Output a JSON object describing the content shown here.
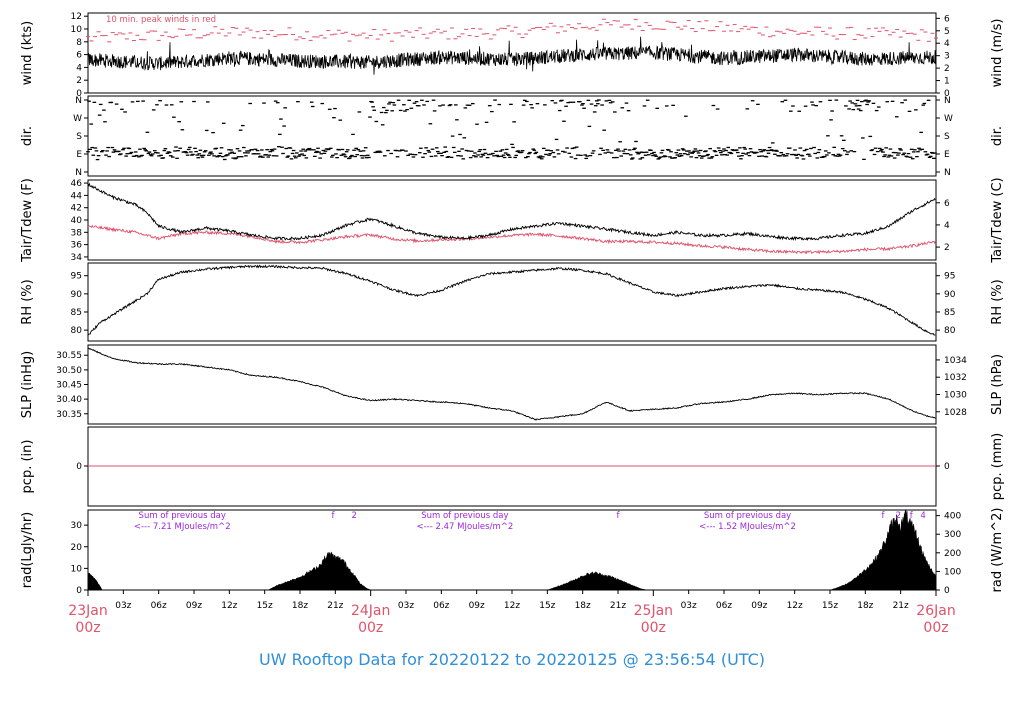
{
  "title": "UW Rooftop Data for 20220122  to  20220125 @ 23:56:54  (UTC)",
  "colors": {
    "black": "#000000",
    "red": "#df536b",
    "purple": "#9d27d8",
    "title_blue": "#2f8fd8"
  },
  "chart_data": [
    {
      "type": "line",
      "panel": "wind",
      "ylabel_left": "wind (kts)",
      "ylabel_right": "wind (m/s)",
      "ylim": [
        0,
        12.5
      ],
      "yticks_left": [
        "0",
        "2",
        "4",
        "6",
        "8",
        "10",
        "12"
      ],
      "yticks_right": [
        "0",
        "1",
        "2",
        "3",
        "4",
        "5",
        "6"
      ],
      "annotation": "10 min. peak winds in red",
      "series": [
        {
          "color": "#000000",
          "anchors_t": [
            0,
            6,
            12,
            18,
            24,
            30,
            36,
            42,
            48,
            54,
            60,
            66,
            72
          ],
          "anchors_v": [
            5.2,
            4.6,
            5.5,
            5.0,
            4.8,
            5.6,
            5.2,
            6.0,
            6.3,
            5.4,
            6.0,
            5.3,
            5.6
          ],
          "noise": 1.1
        },
        {
          "color": "#df536b",
          "anchors_t": [
            0,
            12,
            24,
            36,
            42,
            48,
            60,
            72
          ],
          "anchors_v": [
            8.5,
            9.5,
            9.0,
            9.5,
            10.5,
            10.8,
            9.5,
            9.0
          ],
          "noise": 1.0
        }
      ]
    },
    {
      "type": "scatter",
      "panel": "dir",
      "ylabel_left": "dir.",
      "ylabel_right": "dir.",
      "yticks": [
        "N",
        "E",
        "S",
        "W",
        "N"
      ],
      "note": "predominantly easterly with northerly episodes"
    },
    {
      "type": "line",
      "panel": "temp",
      "ylabel_left": "Tair/Tdew (F)",
      "ylabel_right": "Tair/Tdew (C)",
      "ylim": [
        33.5,
        46.5
      ],
      "yticks_left": [
        "34",
        "36",
        "38",
        "40",
        "42",
        "44",
        "46"
      ],
      "yticks_right": [
        "2",
        "4",
        "6"
      ],
      "series": [
        {
          "name": "Tair",
          "color": "#000000",
          "t": [
            0,
            2,
            4,
            5,
            6,
            8,
            10,
            12,
            14,
            16,
            18,
            20,
            22,
            24,
            26,
            28,
            30,
            32,
            34,
            36,
            38,
            40,
            42,
            44,
            46,
            48,
            50,
            52,
            54,
            56,
            58,
            60,
            62,
            64,
            66,
            68,
            70,
            72
          ],
          "v": [
            45.8,
            43.8,
            42.5,
            41.2,
            39.0,
            38.0,
            38.7,
            38.2,
            37.5,
            37.0,
            37.0,
            37.6,
            39.2,
            40.2,
            39.0,
            37.8,
            37.2,
            37.0,
            37.5,
            38.5,
            39.0,
            39.5,
            39.0,
            38.5,
            38.0,
            37.5,
            38.0,
            37.5,
            37.5,
            37.8,
            37.3,
            37.0,
            37.0,
            37.5,
            37.8,
            39.0,
            41.5,
            43.5
          ]
        },
        {
          "name": "Tdew",
          "color": "#df536b",
          "t": [
            0,
            2,
            4,
            6,
            8,
            10,
            12,
            14,
            16,
            18,
            20,
            22,
            24,
            26,
            28,
            30,
            32,
            34,
            36,
            38,
            40,
            42,
            44,
            46,
            48,
            50,
            52,
            54,
            56,
            58,
            60,
            62,
            64,
            66,
            68,
            70,
            72
          ],
          "v": [
            39.0,
            38.5,
            38.0,
            37.0,
            37.8,
            38.0,
            37.8,
            37.3,
            36.5,
            36.4,
            36.8,
            37.3,
            37.6,
            36.9,
            36.6,
            36.8,
            36.9,
            37.2,
            37.5,
            37.7,
            37.4,
            37.0,
            36.5,
            36.5,
            36.4,
            36.2,
            35.8,
            35.6,
            35.2,
            34.9,
            34.8,
            34.8,
            34.9,
            35.2,
            35.3,
            35.8,
            36.5
          ]
        }
      ]
    },
    {
      "type": "line",
      "panel": "rh",
      "ylabel_left": "RH (%)",
      "ylabel_right": "RH (%)",
      "ylim": [
        77,
        98.5
      ],
      "yticks": [
        "80",
        "85",
        "90",
        "95"
      ],
      "series": [
        {
          "color": "#000000",
          "t": [
            0,
            1,
            3,
            5,
            6,
            8,
            10,
            12,
            14,
            16,
            18,
            20,
            22,
            24,
            26,
            28,
            30,
            32,
            34,
            36,
            38,
            40,
            42,
            44,
            46,
            48,
            50,
            52,
            54,
            56,
            58,
            60,
            62,
            64,
            66,
            68,
            70,
            71,
            72
          ],
          "v": [
            78.5,
            82,
            86,
            90,
            94,
            96,
            96.8,
            97.3,
            97.6,
            97.5,
            97.2,
            97.0,
            95.5,
            93.5,
            91.0,
            89.5,
            91.0,
            93.5,
            95.5,
            96.0,
            96.5,
            97.0,
            96.5,
            95.5,
            93.0,
            90.5,
            89.5,
            90.5,
            91.5,
            92.0,
            92.5,
            91.5,
            91.0,
            90.5,
            88.5,
            86,
            82,
            80,
            78.5
          ]
        }
      ]
    },
    {
      "type": "line",
      "panel": "slp",
      "ylabel_left": "SLP (inHg)",
      "ylabel_right": "SLP (hPa)",
      "ylim": [
        30.315,
        30.585
      ],
      "yticks_left": [
        "30.35",
        "30.40",
        "30.45",
        "30.50",
        "30.55"
      ],
      "yticks_right": [
        "1028",
        "1030",
        "1032",
        "1034"
      ],
      "series": [
        {
          "color": "#000000",
          "t": [
            0,
            2,
            4,
            6,
            8,
            10,
            12,
            14,
            16,
            18,
            20,
            22,
            24,
            26,
            28,
            30,
            32,
            34,
            36,
            38,
            40,
            42,
            44,
            46,
            48,
            50,
            52,
            54,
            56,
            58,
            60,
            62,
            64,
            66,
            68,
            70,
            71,
            72
          ],
          "v": [
            30.575,
            30.54,
            30.525,
            30.52,
            30.52,
            30.51,
            30.5,
            30.48,
            30.475,
            30.46,
            30.44,
            30.41,
            30.395,
            30.4,
            30.395,
            30.39,
            30.385,
            30.37,
            30.36,
            30.33,
            30.34,
            30.35,
            30.39,
            30.36,
            30.365,
            30.37,
            30.385,
            30.39,
            30.4,
            30.415,
            30.42,
            30.415,
            30.42,
            30.42,
            30.4,
            30.36,
            30.345,
            30.335
          ]
        }
      ]
    },
    {
      "type": "line",
      "panel": "pcp",
      "ylabel_left": "pcp. (in)",
      "ylabel_right": "pcp. (mm)",
      "ytick_left": "0",
      "ytick_right": "0",
      "series": [
        {
          "color": "#df536b",
          "value": 0
        }
      ]
    },
    {
      "type": "area",
      "panel": "rad",
      "ylabel_left": "rad(Lgly/hr)",
      "ylabel_right": "rad (W/m^2)",
      "ylim": [
        0,
        37
      ],
      "yticks_left": [
        "0",
        "10",
        "20",
        "30"
      ],
      "yticks_right": [
        "0",
        "100",
        "200",
        "300",
        "400"
      ],
      "series": [
        {
          "color": "#000000",
          "t": [
            0,
            0.3,
            0.6,
            1.0,
            1.2,
            15.3,
            16,
            17,
            18,
            19,
            19.6,
            20,
            20.5,
            21,
            21.6,
            22,
            22.6,
            23.1,
            23.6,
            24
          ],
          "v": [
            8.5,
            7,
            5,
            2,
            0,
            0,
            2,
            4,
            6,
            9,
            11,
            14,
            17,
            15,
            14,
            11,
            7,
            3,
            1,
            0
          ]
        },
        {
          "color": "#000000",
          "t": [
            39,
            39.8,
            40.8,
            41.8,
            42.5,
            43,
            43.8,
            44.5,
            45.4,
            46.3,
            47,
            47.5
          ],
          "v": [
            0,
            1.5,
            3.5,
            6,
            7.5,
            8,
            7,
            6,
            4,
            2,
            0.5,
            0
          ]
        },
        {
          "color": "#000000",
          "t": [
            63,
            63.6,
            64.5,
            65.5,
            66.5,
            67.2,
            67.8,
            68.2,
            68.7,
            69,
            69.4,
            69.8,
            70.3,
            70.8,
            71.3,
            71.8,
            72
          ],
          "v": [
            0,
            1,
            3,
            7,
            12,
            17,
            24,
            30,
            33,
            29,
            35,
            31,
            26,
            18,
            12,
            8,
            6
          ]
        }
      ],
      "annotations": [
        {
          "text": "Sum of previous day",
          "t": 8,
          "row": 1
        },
        {
          "text": "<--- 7.21 MJoules/m^2",
          "t": 8,
          "row": 2
        },
        {
          "text": "Sum of previous day",
          "t": 32,
          "row": 1
        },
        {
          "text": "<--- 2.47 MJoules/m^2",
          "t": 32,
          "row": 2
        },
        {
          "text": "Sum of previous day",
          "t": 56,
          "row": 1
        },
        {
          "text": "<--- 1.52 MJoules/m^2",
          "t": 56,
          "row": 2
        },
        {
          "text": "f",
          "t": 20.8,
          "row": 1
        },
        {
          "text": "2",
          "t": 22.6,
          "row": 1
        },
        {
          "text": "f",
          "t": 45.0,
          "row": 1
        },
        {
          "text": "f",
          "t": 67.5,
          "row": 1
        },
        {
          "text": "2",
          "t": 68.8,
          "row": 1
        },
        {
          "text": "f",
          "t": 69.9,
          "row": 1
        },
        {
          "text": "4",
          "t": 70.9,
          "row": 1
        }
      ]
    }
  ],
  "x_axis": {
    "range": [
      0,
      72
    ],
    "minor_ticks": [
      {
        "t": 3,
        "label": "03z"
      },
      {
        "t": 6,
        "label": "06z"
      },
      {
        "t": 9,
        "label": "09z"
      },
      {
        "t": 12,
        "label": "12z"
      },
      {
        "t": 15,
        "label": "15z"
      },
      {
        "t": 18,
        "label": "18z"
      },
      {
        "t": 21,
        "label": "21z"
      },
      {
        "t": 27,
        "label": "03z"
      },
      {
        "t": 30,
        "label": "06z"
      },
      {
        "t": 33,
        "label": "09z"
      },
      {
        "t": 36,
        "label": "12z"
      },
      {
        "t": 39,
        "label": "15z"
      },
      {
        "t": 42,
        "label": "18z"
      },
      {
        "t": 45,
        "label": "21z"
      },
      {
        "t": 51,
        "label": "03z"
      },
      {
        "t": 54,
        "label": "06z"
      },
      {
        "t": 57,
        "label": "09z"
      },
      {
        "t": 60,
        "label": "12z"
      },
      {
        "t": 63,
        "label": "15z"
      },
      {
        "t": 66,
        "label": "18z"
      },
      {
        "t": 69,
        "label": "21z"
      }
    ],
    "day_ticks": [
      {
        "t": 0,
        "date": "23Jan",
        "hour": "00z"
      },
      {
        "t": 24,
        "date": "24Jan",
        "hour": "00z"
      },
      {
        "t": 48,
        "date": "25Jan",
        "hour": "00z"
      },
      {
        "t": 72,
        "date": "26Jan",
        "hour": "00z"
      }
    ]
  }
}
